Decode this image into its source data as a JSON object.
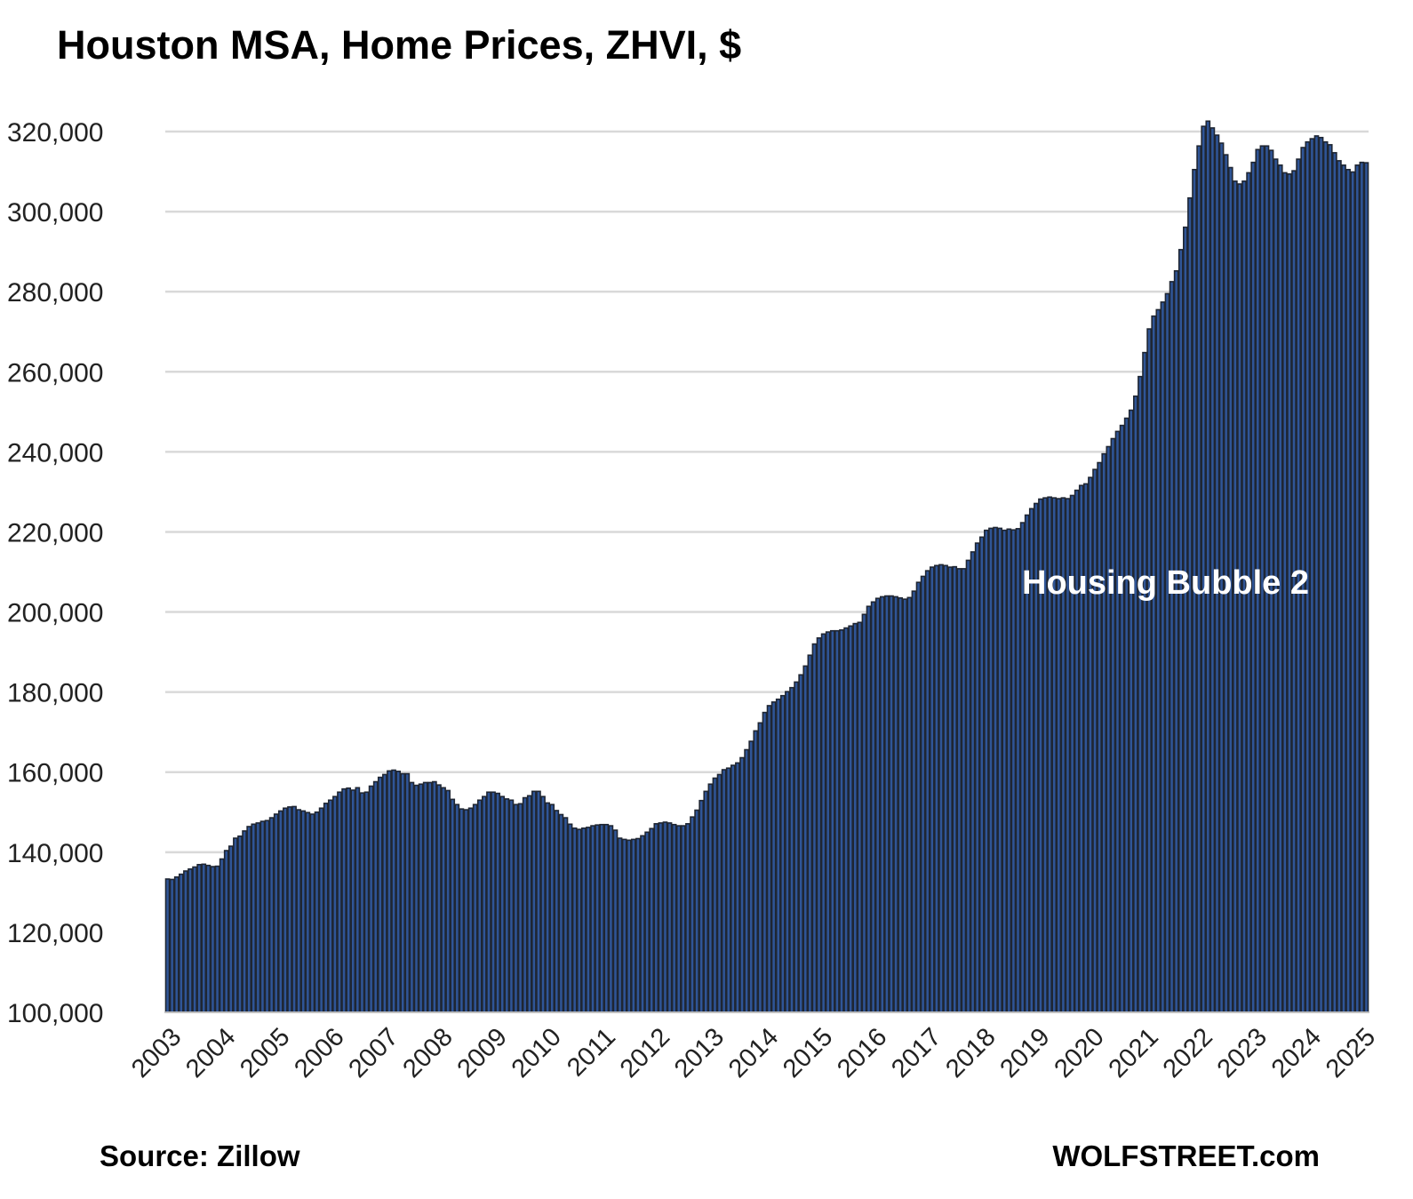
{
  "chart_data": {
    "type": "bar",
    "title": "Houston MSA, Home Prices, ZHVI, $",
    "xlabel": "",
    "ylabel": "",
    "ylim": [
      100000,
      320000
    ],
    "yticks": [
      100000,
      120000,
      140000,
      160000,
      180000,
      200000,
      220000,
      240000,
      260000,
      280000,
      300000,
      320000
    ],
    "ytick_labels": [
      "100,000",
      "120,000",
      "140,000",
      "160,000",
      "180,000",
      "200,000",
      "220,000",
      "240,000",
      "260,000",
      "280,000",
      "300,000",
      "320,000"
    ],
    "xtick_labels": [
      "2003",
      "2004",
      "2005",
      "2006",
      "2007",
      "2008",
      "2009",
      "2010",
      "2011",
      "2012",
      "2013",
      "2014",
      "2015",
      "2016",
      "2017",
      "2018",
      "2019",
      "2020",
      "2021",
      "2022",
      "2023",
      "2024",
      "2025"
    ],
    "xtick_every_n_bars": 12,
    "grid": "horizontal",
    "annotation": "Housing Bubble 2",
    "source": "Source: Zillow",
    "brand": "WOLFSTREET.com",
    "colors": {
      "bar_fill": "#2f5597",
      "bar_edge": "#1f2633",
      "grid": "#d9d9d9"
    },
    "values_thousands": [
      133.3,
      133.2,
      133.8,
      134.5,
      135.3,
      135.8,
      136.3,
      136.9,
      137,
      136.7,
      136.4,
      136.5,
      138.3,
      140.4,
      141.5,
      143.5,
      144,
      145.3,
      146.4,
      147,
      147.3,
      147.7,
      147.9,
      148.6,
      149.5,
      150.3,
      151,
      151.3,
      151.4,
      150.6,
      150.3,
      149.9,
      149.5,
      150,
      151,
      152.2,
      153,
      153.9,
      155,
      155.8,
      156,
      155.5,
      156.1,
      154.8,
      155,
      156.5,
      157.6,
      158.7,
      159.4,
      160.3,
      160.5,
      160.2,
      159.6,
      159.6,
      157.4,
      156.7,
      157,
      157.4,
      157.4,
      157.6,
      156.8,
      156.1,
      155.4,
      153.2,
      151.9,
      150.8,
      150.6,
      151,
      151.9,
      153,
      153.9,
      155,
      155,
      154.7,
      153.9,
      153.3,
      153,
      151.9,
      152.1,
      153.6,
      154.1,
      155.2,
      155.2,
      153.9,
      152.3,
      151.9,
      150.4,
      149.4,
      148.6,
      147,
      146,
      145.7,
      146,
      146.2,
      146.6,
      146.8,
      146.9,
      146.9,
      146.6,
      145.5,
      143.5,
      143.2,
      143,
      143.2,
      143.4,
      144.1,
      145,
      145.9,
      147.1,
      147.3,
      147.5,
      147.3,
      146.9,
      146.6,
      146.6,
      147.1,
      148.8,
      150.5,
      152.9,
      155.2,
      157,
      158.5,
      159.4,
      160.6,
      161,
      161.7,
      162.3,
      163.6,
      165.6,
      167.7,
      170.3,
      172.3,
      174.9,
      176.6,
      177.5,
      178.2,
      179.1,
      180.1,
      181.1,
      182.5,
      184.3,
      186.5,
      189.2,
      192,
      193.5,
      194.5,
      195,
      195.3,
      195.3,
      195.5,
      196,
      196.5,
      197.1,
      197.4,
      199.4,
      201.4,
      202.5,
      203.4,
      203.8,
      204,
      204,
      203.8,
      203.5,
      203.2,
      203.6,
      205.2,
      207.4,
      208.9,
      210.3,
      211.2,
      211.6,
      211.8,
      211.6,
      211.2,
      211.3,
      210.8,
      210.8,
      212.9,
      215,
      217.2,
      218.7,
      220.4,
      220.9,
      221.1,
      220.9,
      220.4,
      220.7,
      220.5,
      220.8,
      222.3,
      224.2,
      225.8,
      227.1,
      228.2,
      228.5,
      228.7,
      228.5,
      228.3,
      228.5,
      228.3,
      229.1,
      230.4,
      231.6,
      232,
      233.6,
      235.6,
      237.3,
      239.5,
      241.3,
      243.3,
      245.1,
      246.6,
      248.4,
      250.4,
      253.9,
      258.8,
      264.8,
      270.7,
      273.9,
      275.5,
      277.4,
      279.5,
      282.5,
      285.2,
      290.5,
      296.1,
      303.4,
      310.5,
      316.4,
      321.3,
      322.6,
      320.9,
      319.1,
      317.1,
      314.2,
      311,
      307.6,
      306.9,
      307.6,
      309.7,
      312.3,
      315.5,
      316.4,
      316.4,
      315.3,
      313.1,
      311.6,
      309.7,
      309.4,
      310.2,
      313.1,
      316,
      317.4,
      318.2,
      318.9,
      318.5,
      317.4,
      316.7,
      314.7,
      312.7,
      311.6,
      310.5,
      309.9,
      311.6,
      312.3,
      312.2
    ]
  }
}
